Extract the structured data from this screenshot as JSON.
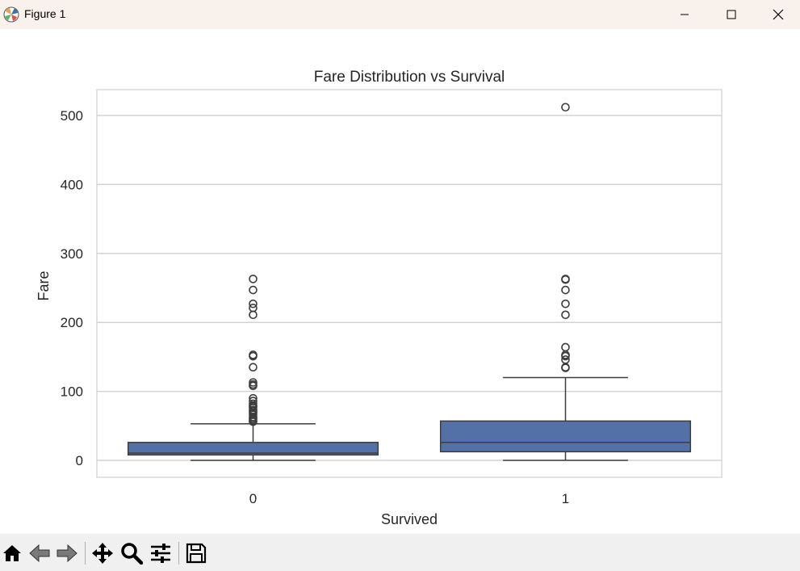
{
  "window": {
    "title": "Figure 1",
    "controls": [
      "minimize",
      "maximize",
      "close"
    ]
  },
  "toolbar": {
    "buttons": [
      {
        "name": "home-icon"
      },
      {
        "name": "back-arrow-icon"
      },
      {
        "name": "forward-arrow-icon"
      },
      {
        "name": "pan-icon"
      },
      {
        "name": "zoom-icon"
      },
      {
        "name": "configure-subplots-icon"
      },
      {
        "name": "save-icon"
      }
    ]
  },
  "chart_data": {
    "type": "box",
    "title": "Fare Distribution vs Survival",
    "xlabel": "Survived",
    "ylabel": "Fare",
    "categories": [
      "0",
      "1"
    ],
    "ylim": [
      -25,
      537
    ],
    "yticks": [
      0,
      100,
      200,
      300,
      400,
      500
    ],
    "grid": true,
    "box_color": "#5471a7",
    "edge_color": "#3d3d3d",
    "grid_color": "#d3d3d3",
    "boxes": [
      {
        "category": "0",
        "whisker_low": 0,
        "q1": 7.9,
        "median": 10.5,
        "q3": 26,
        "whisker_high": 53,
        "outliers": [
          56,
          57,
          59,
          61,
          63,
          66,
          69,
          71,
          73,
          76,
          78,
          79,
          82,
          86,
          90,
          108,
          110,
          113,
          135,
          151,
          153,
          211,
          221,
          227,
          247,
          263
        ]
      },
      {
        "category": "1",
        "whisker_low": 0,
        "q1": 12.5,
        "median": 26,
        "q3": 57,
        "whisker_high": 120,
        "outliers": [
          134,
          135,
          146,
          151,
          153,
          164,
          211,
          227,
          247,
          262,
          263,
          512
        ]
      }
    ]
  }
}
